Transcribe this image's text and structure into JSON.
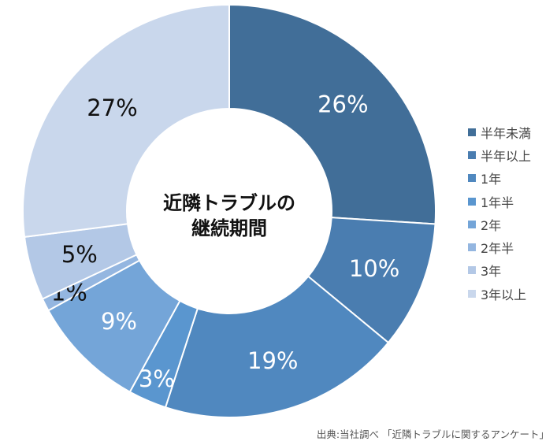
{
  "chart_data": {
    "type": "pie",
    "donut": true,
    "center_label": [
      "近隣トラブルの",
      "継続期間"
    ],
    "categories": [
      "半年未満",
      "半年以上",
      "1年",
      "1年半",
      "2年",
      "2年半",
      "3年",
      "3年以上"
    ],
    "values": [
      26,
      10,
      19,
      3,
      9,
      1,
      5,
      27
    ],
    "data_labels": [
      "26%",
      "10%",
      "19%",
      "3%",
      "9%",
      "1%",
      "5%",
      "27%"
    ],
    "colors": [
      "#416e98",
      "#4a7db0",
      "#5088bf",
      "#5a96cf",
      "#74a5d8",
      "#94b6e0",
      "#b3c8e6",
      "#c9d7ec"
    ],
    "label_colors": [
      "#ffffff",
      "#ffffff",
      "#ffffff",
      "#ffffff",
      "#ffffff",
      "#111111",
      "#111111",
      "#111111"
    ],
    "legend_position": "right"
  },
  "source": "出典:当社調べ 「近隣トラブルに関するアンケート」"
}
